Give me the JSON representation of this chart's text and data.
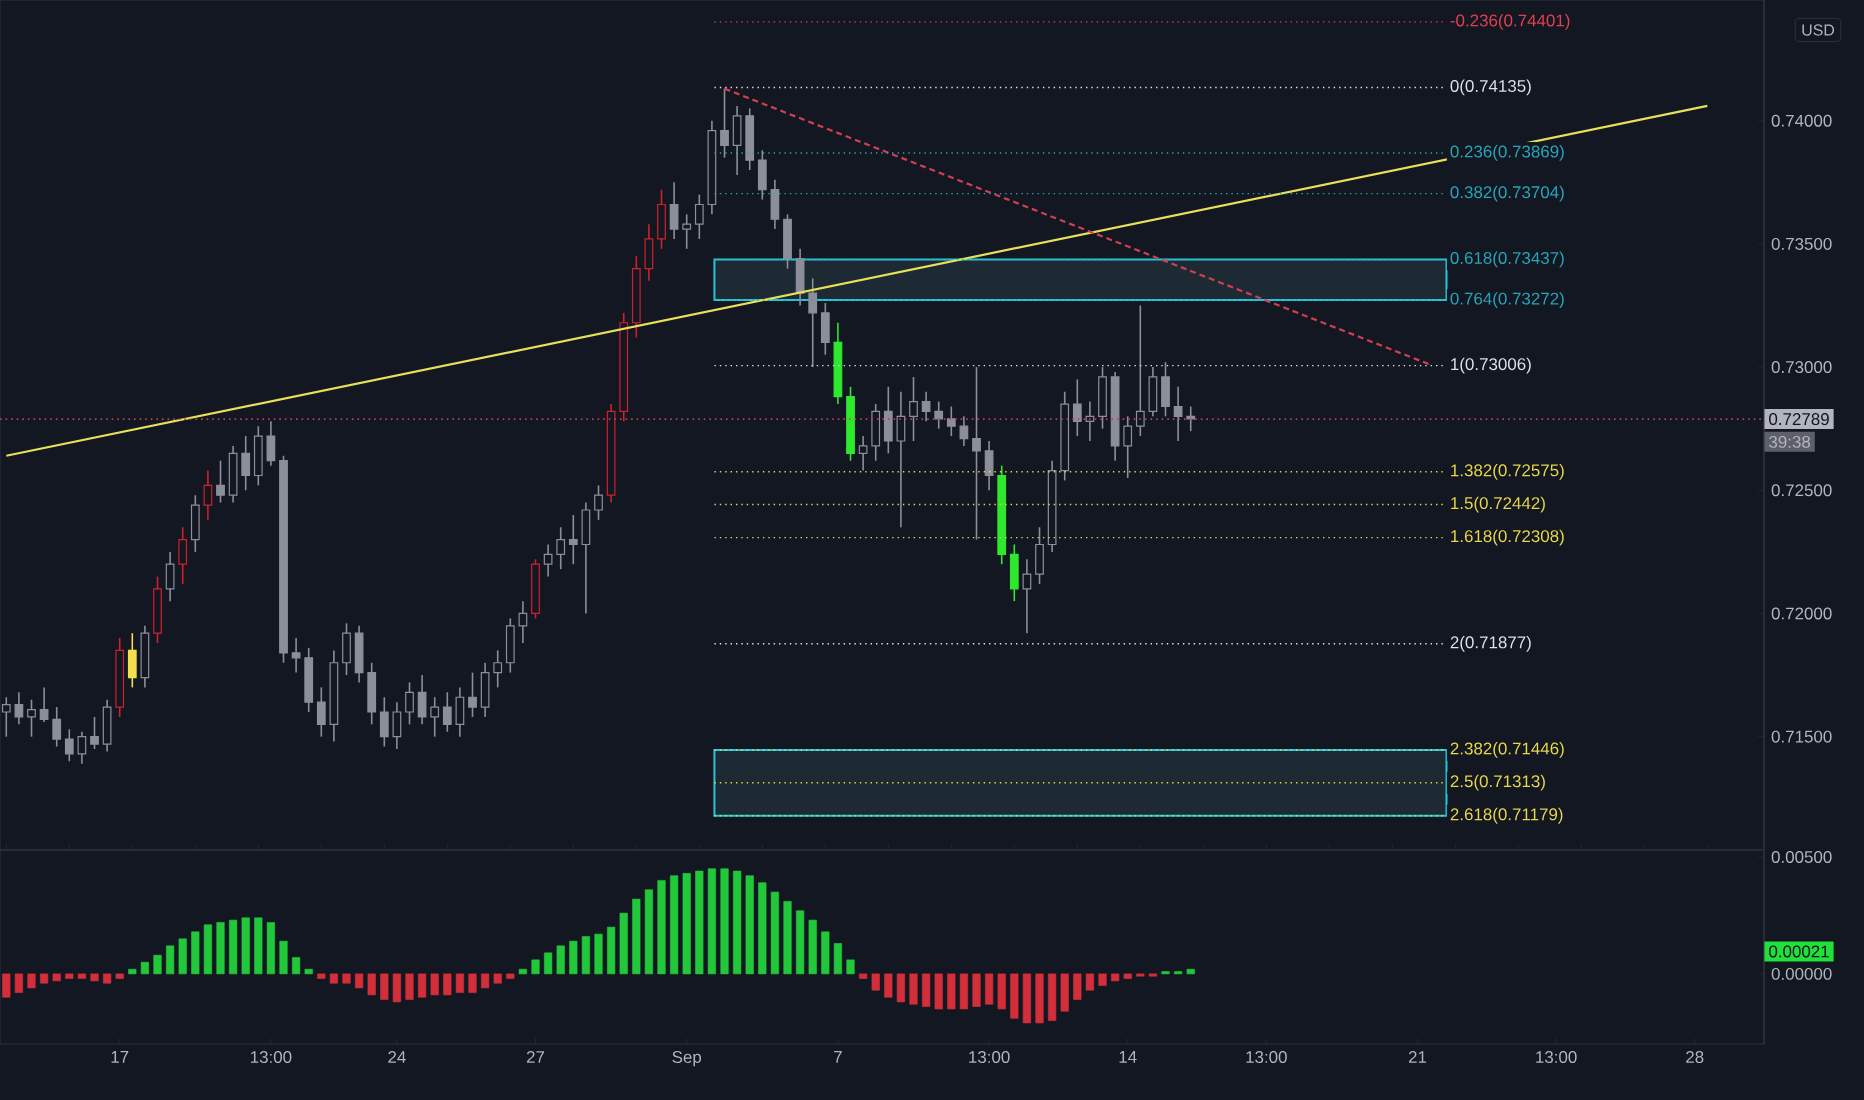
{
  "chart_data": [
    {
      "type": "candlestick",
      "tick_labels": "y",
      "categories": [
        null,
        null,
        null,
        null,
        null,
        null,
        null,
        null,
        null,
        null,
        null,
        null,
        null,
        null,
        null,
        null,
        null,
        null,
        null,
        null,
        null,
        null,
        null,
        null,
        null,
        null,
        null,
        null,
        null,
        null,
        null,
        null,
        null,
        null,
        null,
        null,
        null,
        null,
        null,
        null,
        null,
        null,
        null,
        null,
        null,
        null,
        null,
        null,
        null,
        null,
        null,
        null,
        null,
        null,
        null,
        null,
        null,
        null,
        null,
        null,
        null,
        null,
        null,
        null,
        null,
        null,
        null,
        null,
        null,
        null,
        null,
        null,
        null,
        null,
        null,
        null,
        null,
        null,
        null,
        null,
        null,
        null,
        null,
        null,
        null,
        null,
        null,
        null,
        null,
        null,
        null,
        null,
        null,
        null,
        null,
        null,
        null,
        null,
        null,
        null,
        null,
        null,
        null,
        null,
        null,
        null,
        null,
        null,
        null,
        null,
        null,
        null,
        null,
        null,
        null,
        null,
        null,
        null,
        null,
        null,
        null,
        null,
        null,
        null,
        null,
        null,
        null,
        null,
        null,
        null,
        null,
        null,
        null,
        null,
        null,
        null,
        null,
        null,
        null,
        null
      ],
      "ohlc": [
        [
          0.716,
          0.7166,
          0.715,
          0.7163
        ],
        [
          0.7163,
          0.7168,
          0.7155,
          0.7158
        ],
        [
          0.7158,
          0.7165,
          0.715,
          0.7161
        ],
        [
          0.7161,
          0.717,
          0.7156,
          0.7157
        ],
        [
          0.7157,
          0.7162,
          0.7146,
          0.7149
        ],
        [
          0.7149,
          0.7153,
          0.714,
          0.7143
        ],
        [
          0.7143,
          0.7152,
          0.7139,
          0.715
        ],
        [
          0.715,
          0.7158,
          0.7145,
          0.7147
        ],
        [
          0.7147,
          0.7165,
          0.7144,
          0.7162
        ],
        [
          0.7162,
          0.719,
          0.7158,
          0.7185
        ],
        [
          0.7185,
          0.7192,
          0.717,
          0.7174
        ],
        [
          0.7174,
          0.7195,
          0.717,
          0.7192
        ],
        [
          0.7192,
          0.7215,
          0.7188,
          0.721
        ],
        [
          0.721,
          0.7225,
          0.7205,
          0.722
        ],
        [
          0.722,
          0.7235,
          0.7212,
          0.723
        ],
        [
          0.723,
          0.7248,
          0.7225,
          0.7244
        ],
        [
          0.7244,
          0.7258,
          0.7238,
          0.7252
        ],
        [
          0.7252,
          0.7262,
          0.7245,
          0.7248
        ],
        [
          0.7248,
          0.7268,
          0.7245,
          0.7265
        ],
        [
          0.7265,
          0.7272,
          0.725,
          0.7256
        ],
        [
          0.7256,
          0.7276,
          0.7252,
          0.7272
        ],
        [
          0.7272,
          0.7278,
          0.726,
          0.7262
        ],
        [
          0.7262,
          0.7264,
          0.718,
          0.7184
        ],
        [
          0.7184,
          0.719,
          0.7176,
          0.7182
        ],
        [
          0.7182,
          0.7186,
          0.716,
          0.7164
        ],
        [
          0.7164,
          0.717,
          0.715,
          0.7155
        ],
        [
          0.7155,
          0.7185,
          0.7148,
          0.718
        ],
        [
          0.718,
          0.7196,
          0.7175,
          0.7192
        ],
        [
          0.7192,
          0.7195,
          0.7172,
          0.7176
        ],
        [
          0.7176,
          0.718,
          0.7155,
          0.716
        ],
        [
          0.716,
          0.7166,
          0.7146,
          0.715
        ],
        [
          0.715,
          0.7164,
          0.7145,
          0.716
        ],
        [
          0.716,
          0.7172,
          0.7155,
          0.7168
        ],
        [
          0.7168,
          0.7175,
          0.7155,
          0.7158
        ],
        [
          0.7158,
          0.7166,
          0.715,
          0.7162
        ],
        [
          0.7162,
          0.7168,
          0.7152,
          0.7155
        ],
        [
          0.7155,
          0.717,
          0.715,
          0.7166
        ],
        [
          0.7166,
          0.7176,
          0.7158,
          0.7162
        ],
        [
          0.7162,
          0.718,
          0.7158,
          0.7176
        ],
        [
          0.7176,
          0.7185,
          0.717,
          0.718
        ],
        [
          0.718,
          0.7198,
          0.7176,
          0.7195
        ],
        [
          0.7195,
          0.7205,
          0.7188,
          0.72
        ],
        [
          0.72,
          0.7222,
          0.7198,
          0.722
        ],
        [
          0.722,
          0.7228,
          0.7215,
          0.7224
        ],
        [
          0.7224,
          0.7235,
          0.7218,
          0.723
        ],
        [
          0.723,
          0.724,
          0.722,
          0.7228
        ],
        [
          0.7228,
          0.7245,
          0.72,
          0.7242
        ],
        [
          0.7242,
          0.7252,
          0.7238,
          0.7248
        ],
        [
          0.7248,
          0.7285,
          0.7245,
          0.7282
        ],
        [
          0.7282,
          0.7322,
          0.7278,
          0.7318
        ],
        [
          0.7318,
          0.7345,
          0.7312,
          0.734
        ],
        [
          0.734,
          0.7358,
          0.7335,
          0.7352
        ],
        [
          0.7352,
          0.7372,
          0.7348,
          0.7366
        ],
        [
          0.7366,
          0.7375,
          0.7352,
          0.7356
        ],
        [
          0.7356,
          0.7362,
          0.7348,
          0.7358
        ],
        [
          0.7358,
          0.737,
          0.7352,
          0.7366
        ],
        [
          0.7366,
          0.74,
          0.7362,
          0.7396
        ],
        [
          0.7396,
          0.7413,
          0.7385,
          0.739
        ],
        [
          0.739,
          0.7406,
          0.7378,
          0.7402
        ],
        [
          0.7402,
          0.7405,
          0.738,
          0.7384
        ],
        [
          0.7384,
          0.7388,
          0.7368,
          0.7372
        ],
        [
          0.7372,
          0.7376,
          0.7356,
          0.736
        ],
        [
          0.736,
          0.7362,
          0.734,
          0.7344
        ],
        [
          0.7344,
          0.7348,
          0.7325,
          0.733
        ],
        [
          0.733,
          0.7336,
          0.73,
          0.7322
        ],
        [
          0.7322,
          0.7326,
          0.7305,
          0.731
        ],
        [
          0.731,
          0.7318,
          0.7285,
          0.7288
        ],
        [
          0.7288,
          0.7292,
          0.7262,
          0.7265
        ],
        [
          0.7265,
          0.7272,
          0.7258,
          0.7268
        ],
        [
          0.7268,
          0.7285,
          0.7262,
          0.7282
        ],
        [
          0.7282,
          0.7292,
          0.7265,
          0.727
        ],
        [
          0.727,
          0.729,
          0.7235,
          0.728
        ],
        [
          0.728,
          0.7296,
          0.727,
          0.7286
        ],
        [
          0.7286,
          0.729,
          0.7278,
          0.7282
        ],
        [
          0.7282,
          0.7286,
          0.7275,
          0.7279
        ],
        [
          0.7279,
          0.7284,
          0.7272,
          0.7276
        ],
        [
          0.7276,
          0.728,
          0.7268,
          0.7271
        ],
        [
          0.7271,
          0.73,
          0.723,
          0.7266
        ],
        [
          0.7266,
          0.727,
          0.725,
          0.7256
        ],
        [
          0.7256,
          0.726,
          0.722,
          0.7224
        ],
        [
          0.7224,
          0.7228,
          0.7205,
          0.721
        ],
        [
          0.721,
          0.7222,
          0.7192,
          0.7216
        ],
        [
          0.7216,
          0.7235,
          0.7212,
          0.7228
        ],
        [
          0.7228,
          0.7262,
          0.7225,
          0.7258
        ],
        [
          0.7258,
          0.729,
          0.7254,
          0.7285
        ],
        [
          0.7285,
          0.7295,
          0.7272,
          0.7278
        ],
        [
          0.7278,
          0.7286,
          0.727,
          0.728
        ],
        [
          0.728,
          0.73,
          0.7275,
          0.7296
        ],
        [
          0.7296,
          0.7298,
          0.7262,
          0.7268
        ],
        [
          0.7268,
          0.728,
          0.7255,
          0.7276
        ],
        [
          0.7276,
          0.7325,
          0.7272,
          0.7282
        ],
        [
          0.7282,
          0.73,
          0.728,
          0.7296
        ],
        [
          0.7296,
          0.7302,
          0.728,
          0.7284
        ],
        [
          0.7284,
          0.7292,
          0.727,
          0.728
        ],
        [
          0.728,
          0.7284,
          0.7274,
          0.7279
        ],
        null,
        null,
        null,
        null,
        null,
        null,
        null,
        null,
        null,
        null,
        null,
        null,
        null,
        null,
        null,
        null,
        null,
        null,
        null,
        null,
        null,
        null,
        null,
        null,
        null,
        null,
        null,
        null,
        null,
        null,
        null,
        null,
        null,
        null,
        null,
        null,
        null,
        null,
        null,
        null,
        null,
        null,
        null,
        null,
        null
      ],
      "colors": [
        "#8c8f99",
        "#8c8f99",
        "#8c8f99",
        "#8c8f99",
        "#8c8f99",
        "#8c8f99",
        "#8c8f99",
        "#8c8f99",
        "#8c8f99",
        "#d0202d",
        "#f4e04d",
        "#8c8f99",
        "#d0202d",
        "#8c8f99",
        "#d0202d",
        "#8c8f99",
        "#d0202d",
        "#8c8f99",
        "#8c8f99",
        "#8c8f99",
        "#8c8f99",
        "#8c8f99",
        "#8c8f99",
        "#8c8f99",
        "#8c8f99",
        "#8c8f99",
        "#8c8f99",
        "#8c8f99",
        "#8c8f99",
        "#8c8f99",
        "#8c8f99",
        "#8c8f99",
        "#8c8f99",
        "#8c8f99",
        "#8c8f99",
        "#8c8f99",
        "#8c8f99",
        "#8c8f99",
        "#8c8f99",
        "#8c8f99",
        "#8c8f99",
        "#8c8f99",
        "#d0202d",
        "#8c8f99",
        "#8c8f99",
        "#8c8f99",
        "#8c8f99",
        "#8c8f99",
        "#d0202d",
        "#d0202d",
        "#d0202d",
        "#d0202d",
        "#d0202d",
        "#8c8f99",
        "#8c8f99",
        "#8c8f99",
        "#8c8f99",
        "#8c8f99",
        "#8c8f99",
        "#8c8f99",
        "#8c8f99",
        "#8c8f99",
        "#8c8f99",
        "#8c8f99",
        "#8c8f99",
        "#8c8f99",
        "#2ee82e",
        "#2ee82e",
        "#8c8f99",
        "#8c8f99",
        "#8c8f99",
        "#8c8f99",
        "#8c8f99",
        "#8c8f99",
        "#8c8f99",
        "#8c8f99",
        "#8c8f99",
        "#8c8f99",
        "#8c8f99",
        "#2ee82e",
        "#2ee82e",
        "#8c8f99",
        "#8c8f99",
        "#8c8f99",
        "#8c8f99",
        "#8c8f99",
        "#8c8f99",
        "#8c8f99",
        "#8c8f99",
        "#8c8f99",
        "#8c8f99",
        "#8c8f99",
        "#8c8f99",
        "#8c8f99",
        "#8c8f99",
        null,
        null,
        null,
        null,
        null,
        null,
        null,
        null,
        null,
        null,
        null,
        null,
        null,
        null,
        null,
        null,
        null,
        null,
        null,
        null,
        null,
        null,
        null,
        null,
        null,
        null,
        null,
        null,
        null,
        null,
        null,
        null,
        null,
        null,
        null,
        null,
        null,
        null,
        null,
        null,
        null,
        null,
        null,
        null,
        null
      ],
      "series": [
        {
          "type": "line",
          "values": [
            0.7264,
            null,
            null,
            null,
            null,
            null,
            null,
            null,
            null,
            null,
            null,
            null,
            null,
            null,
            null,
            null,
            null,
            null,
            null,
            null,
            null,
            null,
            null,
            null,
            null,
            null,
            null,
            null,
            null,
            null,
            null,
            null,
            null,
            null,
            null,
            null,
            null,
            null,
            null,
            null,
            null,
            null,
            null,
            null,
            null,
            null,
            null,
            null,
            null,
            null,
            null,
            null,
            null,
            null,
            null,
            null,
            null,
            null,
            null,
            null,
            null,
            null,
            null,
            null,
            null,
            null,
            null,
            null,
            null,
            null,
            null,
            null,
            null,
            null,
            null,
            null,
            null,
            null,
            null,
            null,
            null,
            null,
            null,
            null,
            null,
            null,
            null,
            null,
            null,
            null,
            null,
            null,
            null,
            null,
            null,
            null,
            null,
            null,
            null,
            null,
            null,
            null,
            null,
            null,
            null,
            null,
            null,
            null,
            null,
            null,
            null,
            null,
            null,
            null,
            null,
            null,
            null,
            null,
            null,
            null,
            null,
            null,
            null,
            null,
            null,
            null,
            null,
            null,
            null,
            null,
            null,
            null,
            null,
            null,
            null,
            0.7406,
            null,
            null,
            null,
            null
          ],
          "color": "#e8e05a",
          "line_style": "solid"
        },
        {
          "type": "line",
          "values": [
            null,
            null,
            null,
            null,
            null,
            null,
            null,
            null,
            null,
            null,
            null,
            null,
            null,
            null,
            null,
            null,
            null,
            null,
            null,
            null,
            null,
            null,
            null,
            null,
            null,
            null,
            null,
            null,
            null,
            null,
            null,
            null,
            null,
            null,
            null,
            null,
            null,
            null,
            null,
            null,
            null,
            null,
            null,
            null,
            null,
            null,
            null,
            null,
            null,
            null,
            null,
            null,
            null,
            null,
            null,
            null,
            null,
            0.7413,
            null,
            null,
            null,
            null,
            null,
            null,
            null,
            null,
            null,
            null,
            null,
            null,
            null,
            null,
            null,
            null,
            null,
            null,
            null,
            null,
            null,
            null,
            null,
            null,
            null,
            null,
            null,
            null,
            null,
            null,
            null,
            null,
            null,
            null,
            null,
            null,
            null,
            null,
            null,
            null,
            null,
            null,
            null,
            null,
            null,
            null,
            null,
            null,
            null,
            null,
            null,
            null,
            null,
            null,
            null,
            0.7301,
            null,
            null,
            null,
            null,
            null,
            null,
            null,
            null,
            null,
            null,
            null,
            null,
            null,
            null,
            null,
            null,
            null,
            null,
            null,
            null,
            null,
            null,
            null,
            null,
            null,
            null
          ],
          "color": "#d04050",
          "line_style": "dashed"
        }
      ],
      "ylim": [
        0.7104,
        0.7449
      ],
      "yticks": [
        {
          "value": 0.715,
          "label": "0.71500"
        },
        {
          "value": 0.72,
          "label": "0.72000"
        },
        {
          "value": 0.725,
          "label": "0.72500"
        },
        {
          "value": 0.73,
          "label": "0.73000"
        },
        {
          "value": 0.735,
          "label": "0.73500"
        },
        {
          "value": 0.74,
          "label": "0.74000"
        }
      ],
      "bands": [
        {
          "axis": "y",
          "from": 0.73272,
          "to": 0.73437,
          "color": "#26c6da"
        },
        {
          "axis": "y",
          "from": 0.71179,
          "to": 0.71446,
          "color": "#26c6da"
        }
      ],
      "ref_lines": [
        {
          "axis": "y",
          "value": 0.74401,
          "label": "-0.236(0.74401)",
          "color": "#e04050",
          "line_style": "dotted"
        },
        {
          "axis": "y",
          "value": 0.74135,
          "label": "0(0.74135)",
          "color": "#e0e3eb",
          "line_style": "dotted"
        },
        {
          "axis": "y",
          "value": 0.73869,
          "label": "0.236(0.73869)",
          "color": "#26a6b8",
          "line_style": "dotted"
        },
        {
          "axis": "y",
          "value": 0.73704,
          "label": "0.382(0.73704)",
          "color": "#26a6b8",
          "line_style": "dotted"
        },
        {
          "axis": "y",
          "value": 0.73437,
          "label": "0.618(0.73437)",
          "color": "#26a6b8",
          "line_style": "dotted"
        },
        {
          "axis": "y",
          "value": 0.73272,
          "label": "0.764(0.73272)",
          "color": "#26a6b8",
          "line_style": "dotted"
        },
        {
          "axis": "y",
          "value": 0.73006,
          "label": "1(0.73006)",
          "color": "#e0e3eb",
          "line_style": "dotted"
        },
        {
          "axis": "y",
          "value": 0.72575,
          "label": "1.382(0.72575)",
          "color": "#e8d84a",
          "line_style": "dotted"
        },
        {
          "axis": "y",
          "value": 0.72442,
          "label": "1.5(0.72442)",
          "color": "#e8d84a",
          "line_style": "dotted"
        },
        {
          "axis": "y",
          "value": 0.72308,
          "label": "1.618(0.72308)",
          "color": "#e8d84a",
          "line_style": "dotted"
        },
        {
          "axis": "y",
          "value": 0.71877,
          "label": "2(0.71877)",
          "color": "#e0e3eb",
          "line_style": "dotted"
        },
        {
          "axis": "y",
          "value": 0.71446,
          "label": "2.382(0.71446)",
          "color": "#e8d84a",
          "line_style": "dotted"
        },
        {
          "axis": "y",
          "value": 0.71313,
          "label": "2.5(0.71313)",
          "color": "#e8d84a",
          "line_style": "dotted"
        },
        {
          "axis": "y",
          "value": 0.71179,
          "label": "2.618(0.71179)",
          "color": "#e8d84a",
          "line_style": "dotted"
        },
        {
          "axis": "y",
          "value": 0.72789,
          "label": "0.72789",
          "color": "#c04050",
          "line_style": "dotted"
        }
      ],
      "annotations": [
        "USD",
        "39:38"
      ]
    },
    {
      "type": "bar",
      "categories": [
        null,
        null,
        null,
        null,
        null,
        null,
        null,
        null,
        null,
        "17",
        null,
        null,
        null,
        null,
        null,
        null,
        null,
        null,
        null,
        null,
        null,
        "13:00",
        null,
        null,
        null,
        null,
        null,
        null,
        null,
        null,
        null,
        "24",
        null,
        null,
        null,
        null,
        null,
        null,
        null,
        null,
        null,
        null,
        "27",
        null,
        null,
        null,
        null,
        null,
        null,
        null,
        null,
        null,
        null,
        null,
        "Sep",
        null,
        null,
        null,
        null,
        null,
        null,
        null,
        null,
        null,
        null,
        null,
        "7",
        null,
        null,
        null,
        null,
        null,
        null,
        null,
        null,
        null,
        null,
        null,
        "13:00",
        null,
        null,
        null,
        null,
        null,
        null,
        null,
        null,
        null,
        null,
        "14",
        null,
        null,
        null,
        null,
        null,
        null,
        null,
        null,
        null,
        null,
        "13:00",
        null,
        null,
        null,
        null,
        null,
        null,
        null,
        null,
        null,
        null,
        null,
        "21",
        null,
        null,
        null,
        null,
        null,
        null,
        null,
        null,
        null,
        null,
        "13:00",
        null,
        null,
        null,
        null,
        null,
        null,
        null,
        null,
        null,
        null,
        "28",
        null,
        null,
        null,
        null,
        null
      ],
      "values": [
        -0.001,
        -0.0008,
        -0.0006,
        -0.0004,
        -0.0003,
        -0.0002,
        -0.0002,
        -0.0003,
        -0.0004,
        -0.0002,
        0.0002,
        0.0005,
        0.0008,
        0.0012,
        0.0015,
        0.0018,
        0.0021,
        0.0022,
        0.0023,
        0.0024,
        0.0024,
        0.0022,
        0.0014,
        0.0007,
        0.0002,
        -0.0002,
        -0.0004,
        -0.0004,
        -0.0006,
        -0.0009,
        -0.0011,
        -0.0012,
        -0.0011,
        -0.001,
        -0.0009,
        -0.0009,
        -0.0008,
        -0.0008,
        -0.0006,
        -0.0004,
        -0.0002,
        0.0002,
        0.0006,
        0.0009,
        0.0012,
        0.0014,
        0.0016,
        0.0017,
        0.002,
        0.0026,
        0.0032,
        0.0036,
        0.004,
        0.0042,
        0.0043,
        0.0044,
        0.0045,
        0.0045,
        0.0044,
        0.0042,
        0.0039,
        0.0035,
        0.0031,
        0.0027,
        0.0023,
        0.0018,
        0.0013,
        0.0006,
        -0.0002,
        -0.0007,
        -0.001,
        -0.0012,
        -0.0013,
        -0.0014,
        -0.0015,
        -0.0015,
        -0.0015,
        -0.0014,
        -0.0013,
        -0.0015,
        -0.0019,
        -0.0021,
        -0.0021,
        -0.002,
        -0.0016,
        -0.0011,
        -0.0007,
        -0.0005,
        -0.0003,
        -0.0002,
        -0.0001,
        -0.0001,
        0.0001,
        0.0001,
        0.0002,
        null,
        null,
        null,
        null,
        null,
        null,
        null,
        null,
        null,
        null,
        null,
        null,
        null,
        null,
        null,
        null,
        null,
        null,
        null,
        null,
        null,
        null,
        null,
        null,
        null,
        null,
        null,
        null,
        null,
        null,
        null,
        null,
        null,
        null,
        null,
        null,
        null,
        null,
        null,
        null,
        null,
        null,
        null,
        null,
        null
      ],
      "colors": [
        "#d32f3a",
        "#d32f3a",
        "#d32f3a",
        "#d32f3a",
        "#d32f3a",
        "#d32f3a",
        "#d32f3a",
        "#d32f3a",
        "#d32f3a",
        "#d32f3a",
        "#22c83a",
        "#22c83a",
        "#22c83a",
        "#22c83a",
        "#22c83a",
        "#22c83a",
        "#22c83a",
        "#22c83a",
        "#22c83a",
        "#22c83a",
        "#22c83a",
        "#22c83a",
        "#22c83a",
        "#22c83a",
        "#22c83a",
        "#d32f3a",
        "#d32f3a",
        "#d32f3a",
        "#d32f3a",
        "#d32f3a",
        "#d32f3a",
        "#d32f3a",
        "#d32f3a",
        "#d32f3a",
        "#d32f3a",
        "#d32f3a",
        "#d32f3a",
        "#d32f3a",
        "#d32f3a",
        "#d32f3a",
        "#d32f3a",
        "#22c83a",
        "#22c83a",
        "#22c83a",
        "#22c83a",
        "#22c83a",
        "#22c83a",
        "#22c83a",
        "#22c83a",
        "#22c83a",
        "#22c83a",
        "#22c83a",
        "#22c83a",
        "#22c83a",
        "#22c83a",
        "#22c83a",
        "#22c83a",
        "#22c83a",
        "#22c83a",
        "#22c83a",
        "#22c83a",
        "#22c83a",
        "#22c83a",
        "#22c83a",
        "#22c83a",
        "#22c83a",
        "#22c83a",
        "#22c83a",
        "#d32f3a",
        "#d32f3a",
        "#d32f3a",
        "#d32f3a",
        "#d32f3a",
        "#d32f3a",
        "#d32f3a",
        "#d32f3a",
        "#d32f3a",
        "#d32f3a",
        "#d32f3a",
        "#d32f3a",
        "#d32f3a",
        "#d32f3a",
        "#d32f3a",
        "#d32f3a",
        "#d32f3a",
        "#d32f3a",
        "#d32f3a",
        "#d32f3a",
        "#d32f3a",
        "#d32f3a",
        "#d32f3a",
        "#d32f3a",
        "#22c83a",
        "#22c83a",
        "#22c83a",
        null,
        null,
        null,
        null,
        null,
        null,
        null,
        null,
        null,
        null,
        null,
        null,
        null,
        null,
        null,
        null,
        null,
        null,
        null,
        null,
        null,
        null,
        null,
        null,
        null,
        null,
        null,
        null,
        null,
        null,
        null,
        null,
        null,
        null,
        null,
        null,
        null,
        null,
        null,
        null,
        null,
        null,
        null,
        null,
        null
      ],
      "ylim": [
        -0.003,
        0.0053
      ],
      "yticks": [
        {
          "value": 0,
          "label": "0.00000"
        },
        {
          "value": 0.005,
          "label": "0.00500"
        }
      ],
      "annotations": [
        "0.00021"
      ]
    }
  ]
}
